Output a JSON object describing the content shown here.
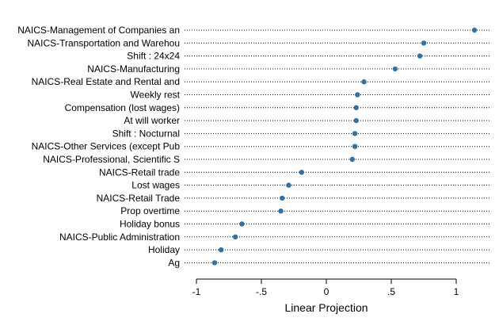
{
  "chart_data": {
    "type": "scatter",
    "style": "dot-plot",
    "xlabel": "Linear Projection",
    "xlim": [
      -1,
      1.15
    ],
    "xticks": [
      -1,
      -0.5,
      0,
      0.5,
      1
    ],
    "xtick_labels": [
      "-1",
      "-.5",
      "0",
      ".5",
      "1"
    ],
    "grid": "dotted horizontal guide per category",
    "marker_color": "#2f72a8",
    "categories": [
      "NAICS-Management of Companies an",
      "NAICS-Transportation and Warehou",
      "Shift : 24x24",
      "NAICS-Manufacturing",
      "NAICS-Real Estate and Rental and",
      "Weekly rest",
      "Compensation (lost wages)",
      "At will worker",
      "Shift : Nocturnal",
      "NAICS-Other Services (except Pub",
      "NAICS-Professional, Scientific S",
      "NAICS-Retail trade",
      "Lost wages",
      "NAICS-Retail Trade",
      "Prop overtime",
      "Holiday bonus",
      "NAICS-Public Administration",
      "Holiday",
      "Ag"
    ],
    "values": [
      1.14,
      0.75,
      0.72,
      0.53,
      0.29,
      0.24,
      0.23,
      0.23,
      0.22,
      0.22,
      0.2,
      -0.19,
      -0.29,
      -0.34,
      -0.35,
      -0.65,
      -0.7,
      -0.81,
      -0.86
    ]
  }
}
